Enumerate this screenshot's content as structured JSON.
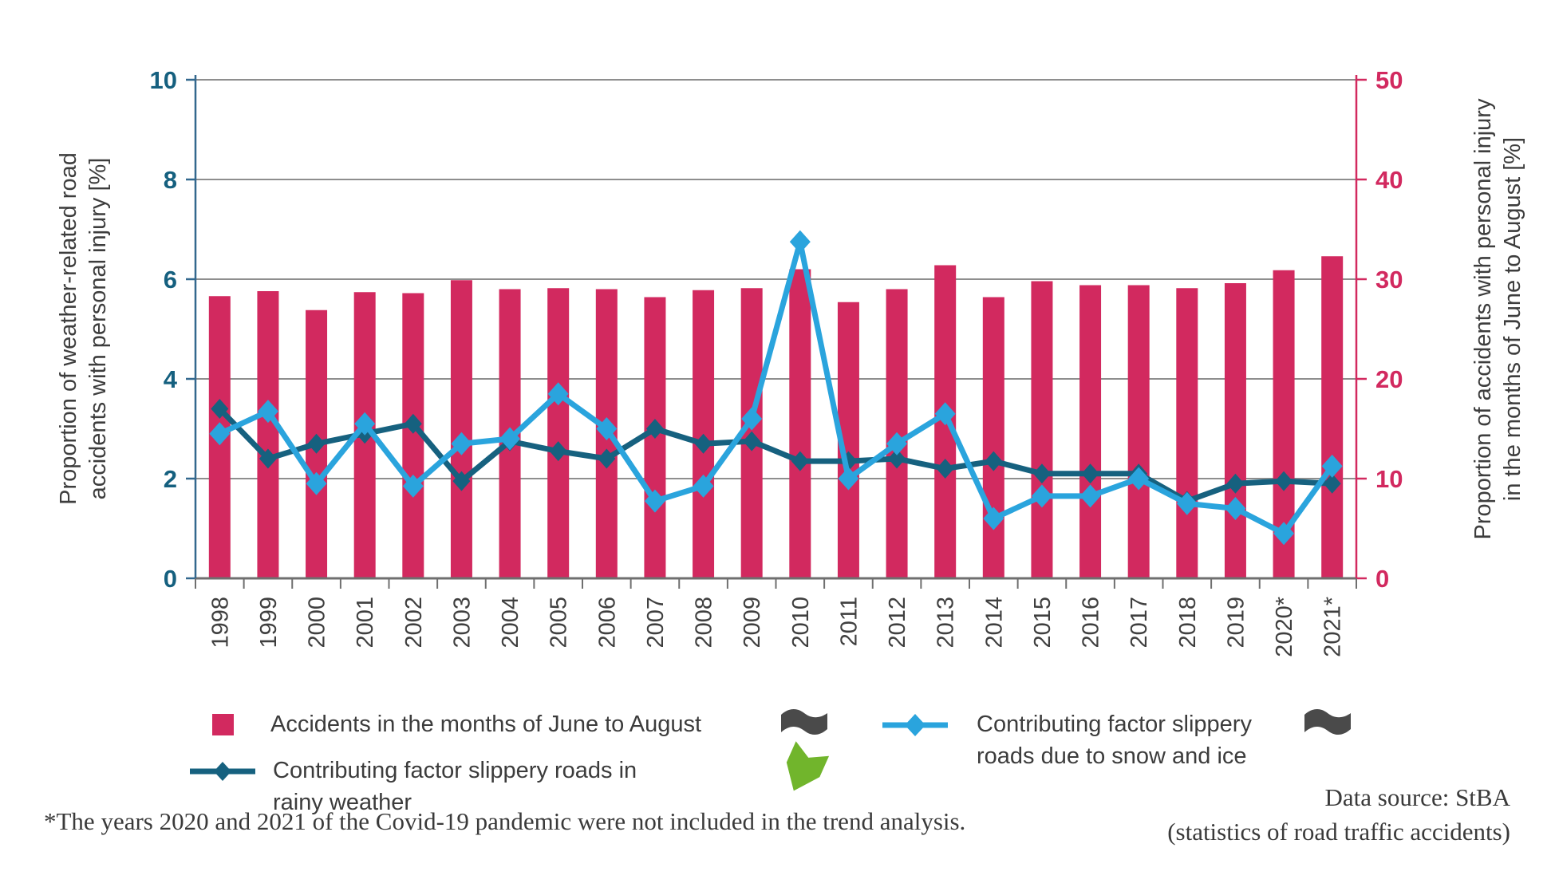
{
  "chart_data": {
    "type": "bar+line",
    "categories": [
      "1998",
      "1999",
      "2000",
      "2001",
      "2002",
      "2003",
      "2004",
      "2005",
      "2006",
      "2007",
      "2008",
      "2009",
      "2010",
      "2011",
      "2012",
      "2013",
      "2014",
      "2015",
      "2016",
      "2017",
      "2018",
      "2019",
      "2020*",
      "2021*"
    ],
    "left_axis": {
      "title_lines": [
        "Proportion of weather-related road",
        "accidents with personal injury  [%]"
      ],
      "min": 0,
      "max": 10,
      "ticks": [
        0,
        2,
        4,
        6,
        8,
        10
      ],
      "color": "#15607f"
    },
    "right_axis": {
      "title_lines": [
        "Proportion of accidents with personal injury",
        "in the months of June to August [%]"
      ],
      "min": 0,
      "max": 50,
      "ticks": [
        0,
        10,
        20,
        30,
        40,
        50
      ],
      "color": "#d2295f"
    },
    "grid": true,
    "legend_position": "bottom",
    "series": [
      {
        "id": "bars",
        "name": "Accidents in the months of June to August",
        "type": "bar",
        "axis": "right",
        "color": "#d2295f",
        "values": [
          28.3,
          28.8,
          26.9,
          28.7,
          28.6,
          29.9,
          29.0,
          29.1,
          29.0,
          28.2,
          28.9,
          29.1,
          31.0,
          27.7,
          29.0,
          31.4,
          28.2,
          29.8,
          29.4,
          29.4,
          29.1,
          29.6,
          30.9,
          32.3
        ]
      },
      {
        "id": "rainy",
        "name": "Contributing factor slippery roads in rainy weather",
        "type": "line",
        "axis": "left",
        "color": "#16617f",
        "values": [
          3.4,
          2.4,
          2.7,
          2.9,
          3.1,
          1.95,
          2.75,
          2.55,
          2.4,
          3.0,
          2.7,
          2.75,
          2.35,
          2.35,
          2.4,
          2.2,
          2.35,
          2.1,
          2.1,
          2.1,
          1.55,
          1.9,
          1.95,
          1.9
        ]
      },
      {
        "id": "snow",
        "name": "Contributing factor slippery roads due to snow and ice",
        "type": "line",
        "axis": "left",
        "color": "#2aa4dd",
        "values": [
          2.9,
          3.35,
          1.9,
          3.1,
          1.85,
          2.7,
          2.8,
          3.7,
          3.0,
          1.55,
          1.85,
          3.2,
          6.75,
          2.0,
          2.7,
          3.3,
          1.2,
          1.65,
          1.65,
          2.0,
          1.5,
          1.4,
          0.9,
          2.25
        ]
      }
    ]
  },
  "legend": {
    "items": [
      {
        "label": "Accidents in the months of June to August",
        "label_lines": [
          "Accidents in the months of June to August"
        ],
        "swatch": "pink-square",
        "trend_icon": "flag"
      },
      {
        "label": "Contributing factor slippery roads in rainy weather",
        "label_lines": [
          "Contributing factor slippery roads in",
          "rainy weather"
        ],
        "swatch": "dark-blue-line",
        "trend_icon": "green-down-arrow"
      },
      {
        "label": "Contributing factor slippery roads due to snow and ice",
        "label_lines": [
          "Contributing factor slippery",
          "roads due to snow and ice"
        ],
        "swatch": "light-blue-line",
        "trend_icon": "flag"
      }
    ]
  },
  "colors": {
    "bar": "#d2295f",
    "line_rainy": "#16617f",
    "line_snow": "#2aa4dd",
    "grid": "#8e8e8e",
    "baseline": "#6f6f6f",
    "left_axis_line": "#33688e",
    "flag_icon": "#4a4a4a",
    "arrow_icon": "#71b52c",
    "text": "#3c3c3c"
  },
  "footnote": "*The years 2020 and 2021 of the Covid-19 pandemic were not included in the trend analysis.",
  "data_source_lines": [
    "Data source: StBA",
    "(statistics of road traffic accidents)"
  ]
}
